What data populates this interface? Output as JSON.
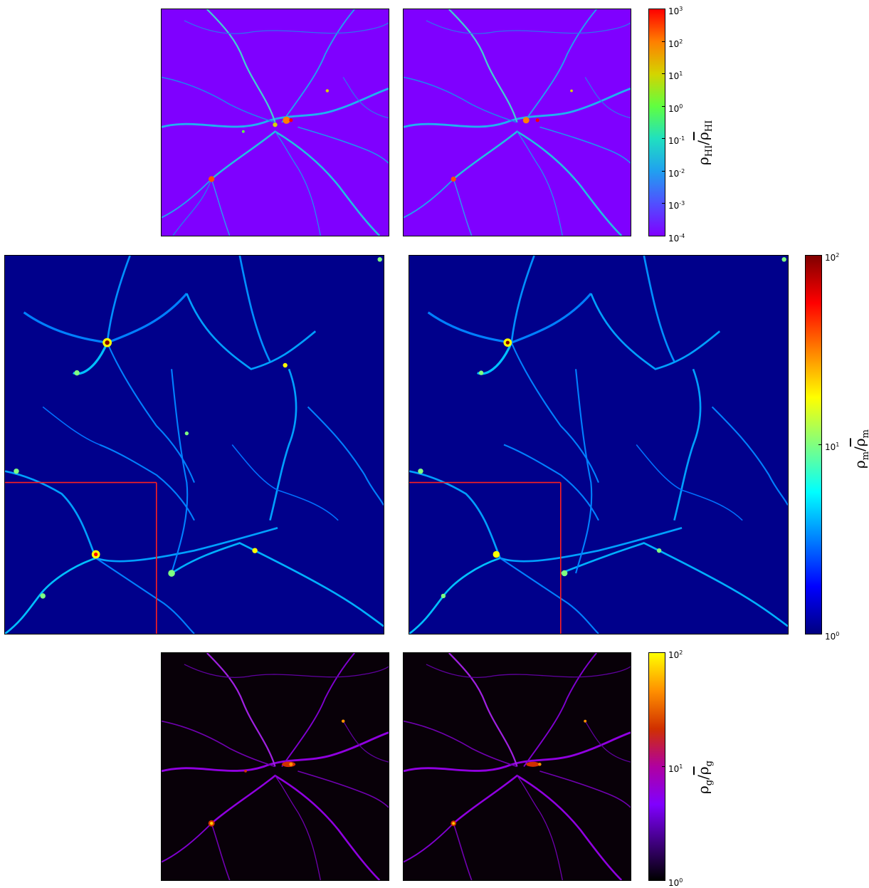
{
  "rows": [
    {
      "id": "hi",
      "colormap": "rainbow",
      "background": "#7f00ff",
      "colorbar": {
        "stops": [
          "#ff0000",
          "#ff7f00",
          "#d4d400",
          "#60ff40",
          "#20e0c0",
          "#20a0f0",
          "#5050ff",
          "#8000ff"
        ],
        "ticks": [
          {
            "base": "10",
            "exp": "3"
          },
          {
            "base": "10",
            "exp": "2"
          },
          {
            "base": "10",
            "exp": "1"
          },
          {
            "base": "10",
            "exp": "0"
          },
          {
            "base": "10",
            "exp": "-1"
          },
          {
            "base": "10",
            "exp": "-2"
          },
          {
            "base": "10",
            "exp": "-3"
          },
          {
            "base": "10",
            "exp": "-4"
          }
        ],
        "label": {
          "sym": "ρ",
          "sub": "HI",
          "sep": "/",
          "bar_sym": "ρ",
          "bar_sub": "HI"
        }
      }
    },
    {
      "id": "matter",
      "colormap": "jet",
      "background": "#00008b",
      "colorbar": {
        "stops": [
          "#800000",
          "#ff0000",
          "#ff8000",
          "#ffff00",
          "#80ff80",
          "#00ffff",
          "#0080ff",
          "#0000ff",
          "#000080"
        ],
        "ticks": [
          {
            "base": "10",
            "exp": "2"
          },
          {
            "base": "10",
            "exp": "1"
          },
          {
            "base": "10",
            "exp": "0"
          }
        ],
        "label": {
          "sym": "ρ",
          "sub": "m",
          "sep": "/",
          "bar_sym": "ρ",
          "bar_sub": "m"
        }
      }
    },
    {
      "id": "gas",
      "colormap": "gnuplot",
      "background": "#080008",
      "colorbar": {
        "stops": [
          "#ffff00",
          "#ff9000",
          "#d03000",
          "#b000a0",
          "#8000ff",
          "#400080",
          "#000000"
        ],
        "ticks": [
          {
            "base": "10",
            "exp": "2"
          },
          {
            "base": "10",
            "exp": "1"
          },
          {
            "base": "10",
            "exp": "0"
          }
        ],
        "label": {
          "sym": "ρ",
          "sub": "g",
          "sep": "/",
          "bar_sym": "ρ",
          "bar_sub": "g"
        }
      }
    }
  ]
}
